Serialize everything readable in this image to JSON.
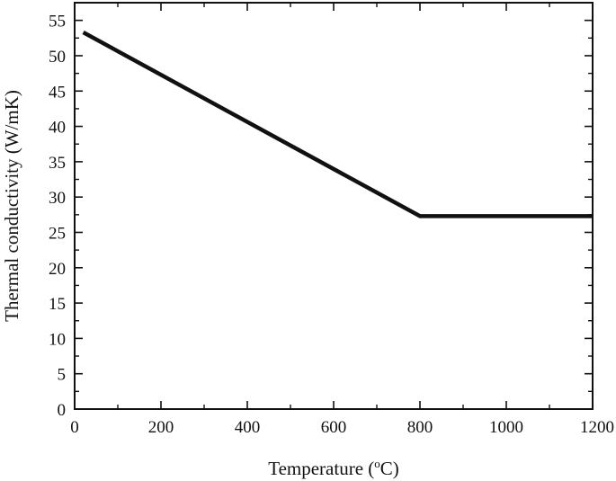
{
  "chart_data": {
    "type": "line",
    "xlabel": "Temperature (",
    "xlabel_sup": "o",
    "xlabel_tail": "C)",
    "ylabel": "Thermal conductivity (W/mK)",
    "xlim": [
      0,
      1200
    ],
    "ylim": [
      0,
      57.5
    ],
    "xticks_major": [
      0,
      200,
      400,
      600,
      800,
      1000,
      1200
    ],
    "xtick_labels": [
      "0",
      "200",
      "400",
      "600",
      "800",
      "1000",
      "1200"
    ],
    "xticks_minor": [
      100,
      300,
      500,
      700,
      900,
      1100
    ],
    "yticks_major": [
      0,
      5,
      10,
      15,
      20,
      25,
      30,
      35,
      40,
      45,
      50,
      55
    ],
    "ytick_labels": [
      "0",
      "5",
      "10",
      "15",
      "20",
      "25",
      "30",
      "35",
      "40",
      "45",
      "50",
      "55"
    ],
    "yticks_minor": [
      2.5,
      7.5,
      12.5,
      17.5,
      22.5,
      27.5,
      32.5,
      37.5,
      42.5,
      47.5,
      52.5
    ],
    "grid": false,
    "series": [
      {
        "color": "#111111",
        "x": [
          20,
          800,
          1200
        ],
        "y": [
          53.3,
          27.3,
          27.3
        ]
      }
    ]
  }
}
